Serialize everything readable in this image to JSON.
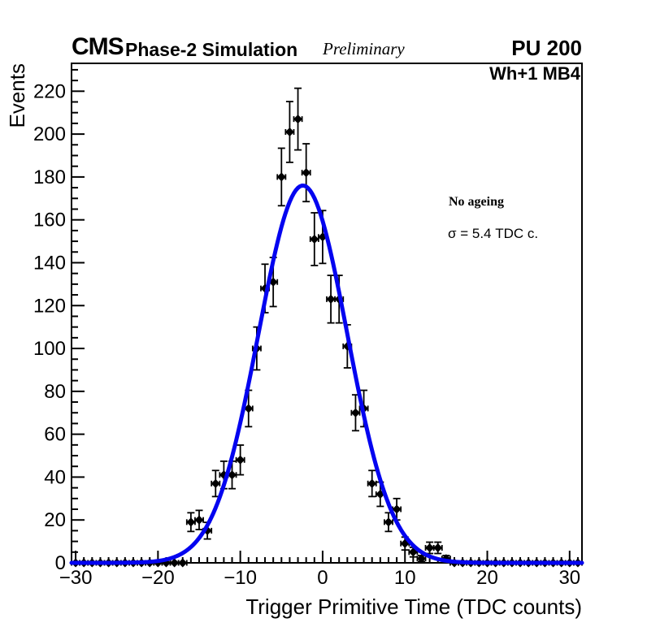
{
  "header": {
    "experiment": "CMS",
    "subtitle": "Phase-2 Simulation",
    "status": "Preliminary",
    "pileup": "PU 200"
  },
  "plot_label": "Wh+1 MB4",
  "annotations": {
    "ageing": "No ageing",
    "sigma": "σ = 5.4 TDC c."
  },
  "chart_data": {
    "type": "scatter",
    "subtype": "histogram-points-with-errors-and-gaussian-fit",
    "title": "",
    "xlabel": "Trigger Primitive Time (TDC counts)",
    "ylabel": "Events",
    "xlim": [
      -30.5,
      31.5
    ],
    "ylim": [
      0,
      233
    ],
    "x_major_ticks": [
      -30,
      -20,
      -10,
      0,
      10,
      20,
      30
    ],
    "x_minor_step": 1,
    "y_major_step": 20,
    "y_minor_step": 5,
    "y_label_max": 220,
    "grid": false,
    "marker": {
      "shape": "diamond",
      "color": "#000000",
      "size": 11
    },
    "errors": "sqrt(N), bin half-width horizontal bars",
    "x": [
      -30,
      -29,
      -28,
      -27,
      -26,
      -25,
      -24,
      -23,
      -22,
      -21,
      -20,
      -19,
      -18,
      -17,
      -16,
      -15,
      -14,
      -13,
      -12,
      -11,
      -10,
      -9,
      -8,
      -7,
      -6,
      -5,
      -4,
      -3,
      -2,
      -1,
      0,
      1,
      2,
      3,
      4,
      5,
      6,
      7,
      8,
      9,
      10,
      11,
      12,
      13,
      14,
      15,
      16,
      17,
      18,
      19,
      20,
      21,
      22,
      23,
      24,
      25,
      26,
      27,
      28,
      29,
      30,
      31
    ],
    "y": [
      0,
      0,
      0,
      0,
      0,
      0,
      0,
      0,
      0,
      0,
      0,
      0,
      0,
      0,
      19,
      20,
      15,
      37,
      41,
      41,
      48,
      72,
      100,
      128,
      131,
      180,
      201,
      207,
      182,
      151,
      152,
      123,
      123,
      101,
      70,
      72,
      37,
      32,
      19,
      25,
      9,
      5,
      2,
      7,
      7,
      2,
      0,
      0,
      0,
      0,
      0,
      0,
      0,
      0,
      0,
      0,
      0,
      0,
      0,
      0,
      0,
      0
    ],
    "fit": {
      "shape": "gaussian",
      "amplitude": 176,
      "mean": -2.4,
      "sigma": 5.4,
      "color": "#0404f0",
      "line_width": 5
    },
    "frame_color": "#000000",
    "background": "#ffffff",
    "legend_position": "none"
  }
}
